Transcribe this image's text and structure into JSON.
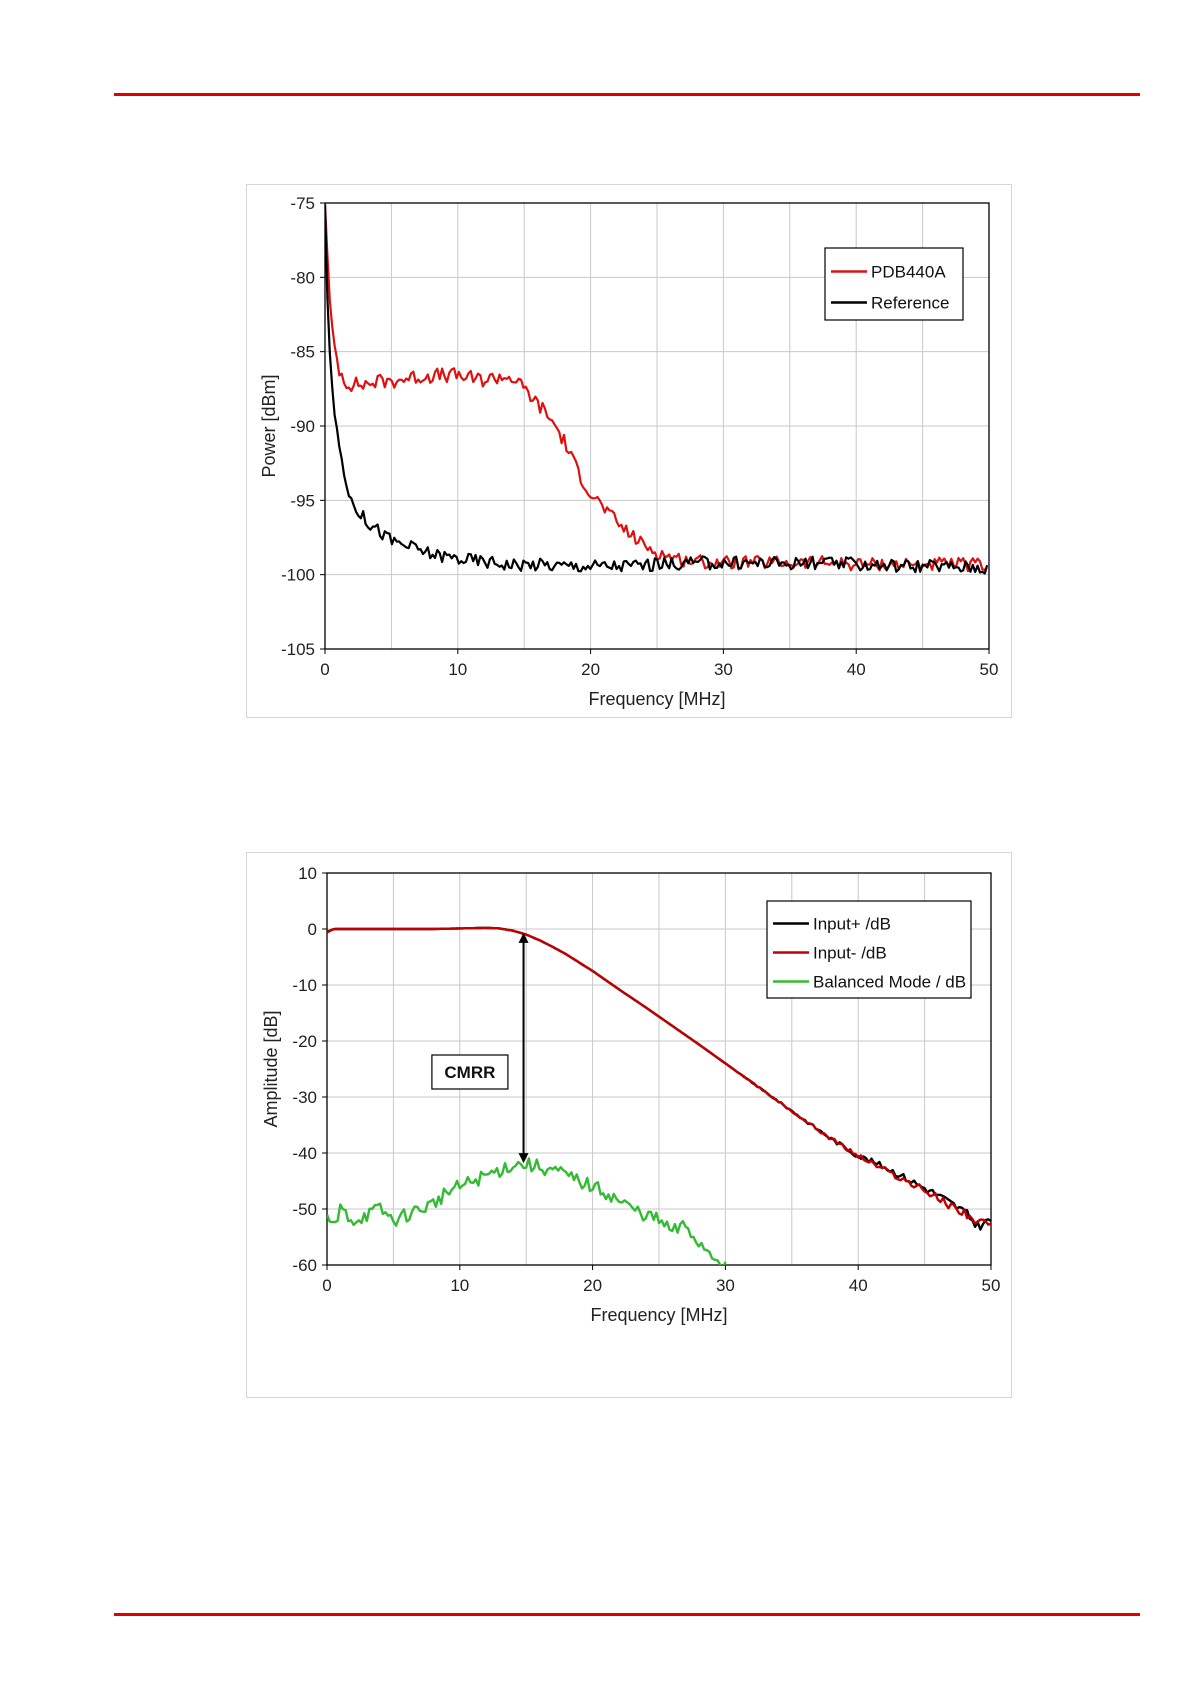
{
  "chart_data": [
    {
      "type": "line",
      "xlabel": "Frequency  [MHz]",
      "ylabel": "Power  [dBm]",
      "xlim": [
        0,
        50
      ],
      "ylim": [
        -105,
        -75
      ],
      "xticks": [
        "0",
        "10",
        "20",
        "30",
        "40",
        "50"
      ],
      "yticks": [
        "-75",
        "-80",
        "-85",
        "-90",
        "-95",
        "-100",
        "-105"
      ],
      "grid": true,
      "legend_position": "top-right",
      "series": [
        {
          "name": "PDB440A",
          "color": "#e01010",
          "x": [
            0,
            0.3,
            0.6,
            1,
            1.5,
            2,
            3,
            4,
            5,
            6,
            7,
            8,
            9,
            10,
            11,
            12,
            13,
            14,
            15,
            16,
            17,
            18,
            19,
            20,
            21,
            22,
            23,
            24,
            25,
            26,
            27,
            28,
            30,
            32,
            35,
            38,
            40,
            42,
            45,
            48,
            50
          ],
          "y": [
            -75,
            -81,
            -84,
            -86,
            -87,
            -87.2,
            -87.2,
            -87,
            -87,
            -86.8,
            -86.7,
            -86.6,
            -86.6,
            -86.6,
            -86.8,
            -86.9,
            -86.7,
            -86.7,
            -87.5,
            -88.5,
            -89.5,
            -91,
            -93,
            -94.5,
            -95.5,
            -96.5,
            -97.3,
            -98,
            -98.5,
            -98.8,
            -99,
            -99.1,
            -99.2,
            -99.2,
            -99.2,
            -99.2,
            -99.3,
            -99.3,
            -99.3,
            -99.3,
            -99.4
          ]
        },
        {
          "name": "Reference",
          "color": "#000000",
          "x": [
            0,
            0.2,
            0.4,
            0.7,
            1,
            1.5,
            2,
            3,
            4,
            5,
            6,
            8,
            10,
            12,
            14,
            16,
            18,
            20,
            22,
            25,
            28,
            30,
            35,
            40,
            45,
            50
          ],
          "y": [
            -75,
            -82,
            -86,
            -89,
            -91,
            -93.5,
            -95,
            -96.3,
            -97,
            -97.7,
            -98,
            -98.6,
            -98.9,
            -99.1,
            -99.3,
            -99.3,
            -99.4,
            -99.4,
            -99.4,
            -99.3,
            -99.2,
            -99.2,
            -99.2,
            -99.3,
            -99.4,
            -99.5
          ]
        }
      ]
    },
    {
      "type": "line",
      "xlabel": "Frequency  [MHz]",
      "ylabel": "Amplitude  [dB]",
      "xlim": [
        0,
        50
      ],
      "ylim": [
        -60,
        10
      ],
      "xticks": [
        "0",
        "10",
        "20",
        "30",
        "40",
        "50"
      ],
      "yticks": [
        "10",
        "0",
        "-10",
        "-20",
        "-30",
        "-40",
        "-50",
        "-60"
      ],
      "grid": true,
      "legend_position": "top-right",
      "annotations": [
        {
          "label": "CMRR",
          "x_arrow": 14.8,
          "y_from": -0.7,
          "y_to": -41.8
        }
      ],
      "series": [
        {
          "name": "Input+ /dB",
          "color": "#000000",
          "x": [
            0,
            0.5,
            2,
            5,
            8,
            10,
            12,
            13,
            14,
            15,
            16,
            17,
            18,
            20,
            22,
            24,
            26,
            28,
            30,
            32,
            34,
            36,
            38,
            40,
            42,
            44,
            46,
            47,
            48,
            49,
            50
          ],
          "y": [
            -0.5,
            0,
            0,
            0,
            0,
            0.1,
            0.2,
            0.1,
            -0.3,
            -1,
            -2,
            -3.2,
            -4.5,
            -7.5,
            -10.8,
            -14,
            -17.3,
            -20.6,
            -24,
            -27.4,
            -30.8,
            -34.2,
            -37.5,
            -40.5,
            -42.5,
            -45,
            -47.5,
            -49,
            -50.5,
            -53,
            -52
          ]
        },
        {
          "name": "Input- /dB",
          "color": "#c00000",
          "x": [
            0,
            0.5,
            2,
            5,
            8,
            10,
            12,
            13,
            14,
            15,
            16,
            17,
            18,
            20,
            22,
            24,
            26,
            28,
            30,
            32,
            34,
            36,
            38,
            40,
            42,
            44,
            46,
            47,
            48,
            49,
            50
          ],
          "y": [
            -0.6,
            0,
            0,
            0,
            0,
            0.1,
            0.2,
            0.1,
            -0.3,
            -1,
            -2,
            -3.2,
            -4.5,
            -7.5,
            -10.8,
            -14,
            -17.3,
            -20.6,
            -24,
            -27.4,
            -30.8,
            -34.2,
            -37.5,
            -40.5,
            -43,
            -45.5,
            -48,
            -49.5,
            -50.5,
            -52.5,
            -53
          ]
        },
        {
          "name": "Balanced Mode / dB",
          "color": "#33bb33",
          "x": [
            0,
            0.5,
            1,
            2,
            3,
            4,
            5,
            6,
            7,
            8,
            9,
            10,
            11,
            12,
            13,
            14,
            15,
            16,
            17,
            18,
            19,
            20,
            21,
            22,
            23,
            24,
            25,
            26,
            27,
            28,
            29,
            30
          ],
          "y": [
            -51,
            -54,
            -50,
            -52,
            -51,
            -50,
            -52,
            -51,
            -50,
            -49,
            -47,
            -46,
            -45,
            -44,
            -43,
            -42,
            -42,
            -42.5,
            -43,
            -44,
            -45,
            -46,
            -47,
            -48.5,
            -50,
            -51,
            -52,
            -54,
            -53,
            -56,
            -58,
            -60
          ]
        }
      ]
    }
  ]
}
